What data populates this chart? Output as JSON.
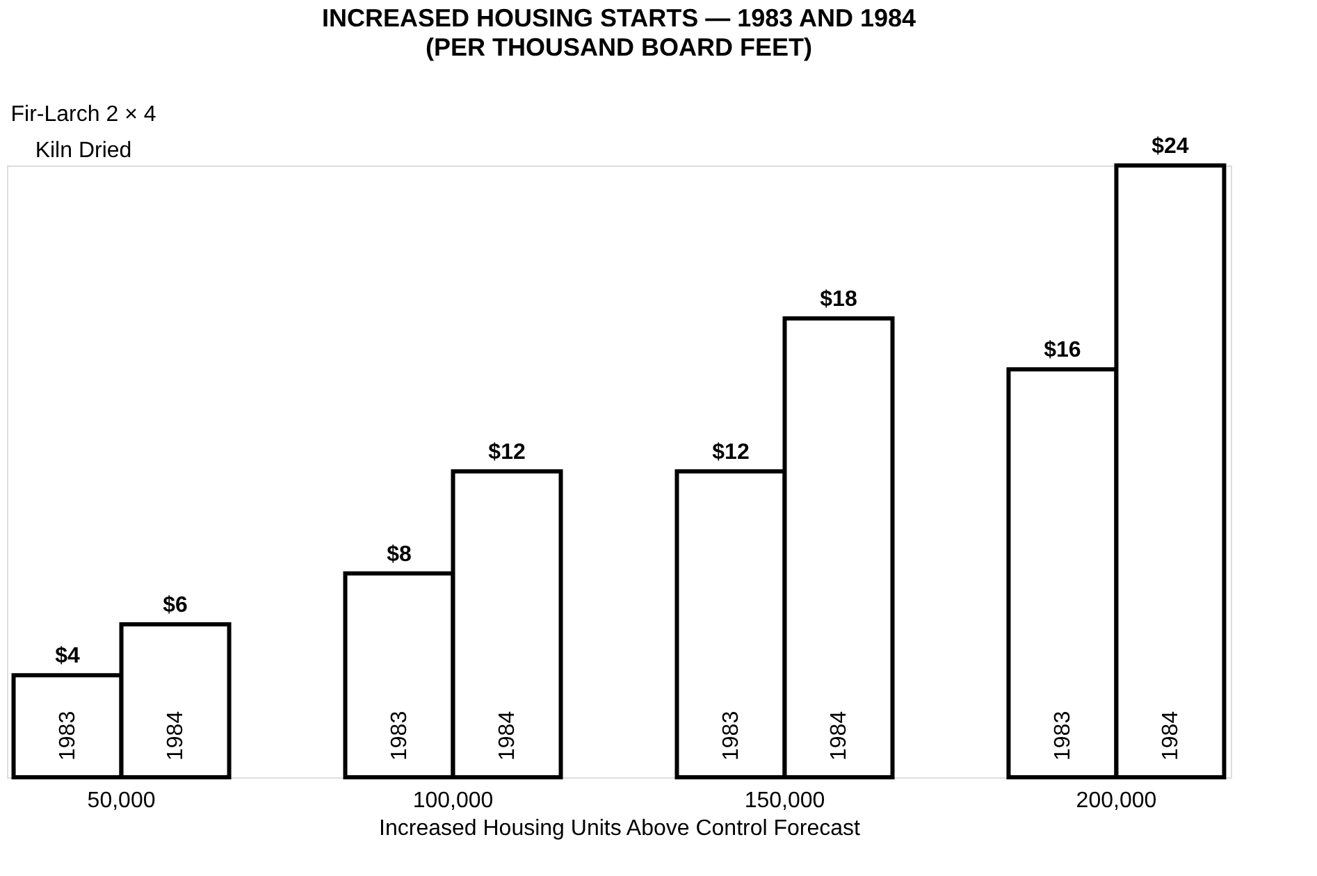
{
  "chart_data": {
    "type": "bar",
    "title": "INCREASED HOUSING STARTS — 1983 AND 1984",
    "subtitle": "(PER THOUSAND BOARD FEET)",
    "xlabel": "Increased Housing Units Above Control Forecast",
    "annotations": [
      "Fir-Larch 2 × 4",
      "Kiln Dried"
    ],
    "categories": [
      "50,000",
      "100,000",
      "150,000",
      "200,000"
    ],
    "series": [
      {
        "name": "1983",
        "color": "#ffffff",
        "values": [
          4,
          8,
          12,
          16
        ],
        "value_labels": [
          "$4",
          "$8",
          "$12",
          "$16"
        ]
      },
      {
        "name": "1984",
        "color": "#ffffff",
        "values": [
          6,
          12,
          18,
          24
        ],
        "value_labels": [
          "$6",
          "$12",
          "$18",
          "$24"
        ]
      }
    ],
    "legend": false,
    "grid": false
  }
}
